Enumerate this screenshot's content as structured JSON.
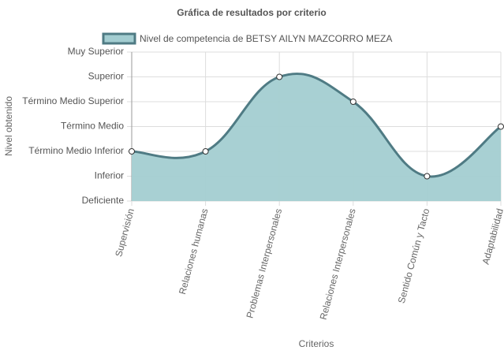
{
  "chart_data": {
    "type": "line",
    "title": "Gráfica de resultados por criterio",
    "x_label": "Criterios",
    "y_label": "Nivel obtenido",
    "categories": [
      "Supervisión",
      "Relaciones humanas",
      "Problemas Interpersonales",
      "Relaciones Interpersonales",
      "Sentido Común y Tacto",
      "Adaptabilidad"
    ],
    "series": [
      {
        "name": "Nivel de competencia de BETSY AILYN MAZCORRO MEZA",
        "color": "#4f7b84",
        "fill": "#a3cdd1",
        "values": [
          2,
          2,
          5,
          4,
          1,
          3
        ]
      }
    ],
    "ylim": [
      0,
      6
    ],
    "yticks": [
      {
        "value": 0,
        "label": "Deficiente"
      },
      {
        "value": 1,
        "label": "Inferior"
      },
      {
        "value": 2,
        "label": "Término Medio Inferior"
      },
      {
        "value": 3,
        "label": "Término Medio"
      },
      {
        "value": 4,
        "label": "Término Medio Superior"
      },
      {
        "value": 5,
        "label": "Superior"
      },
      {
        "value": 6,
        "label": "Muy Superior"
      }
    ],
    "grid": true,
    "legend": "top"
  }
}
